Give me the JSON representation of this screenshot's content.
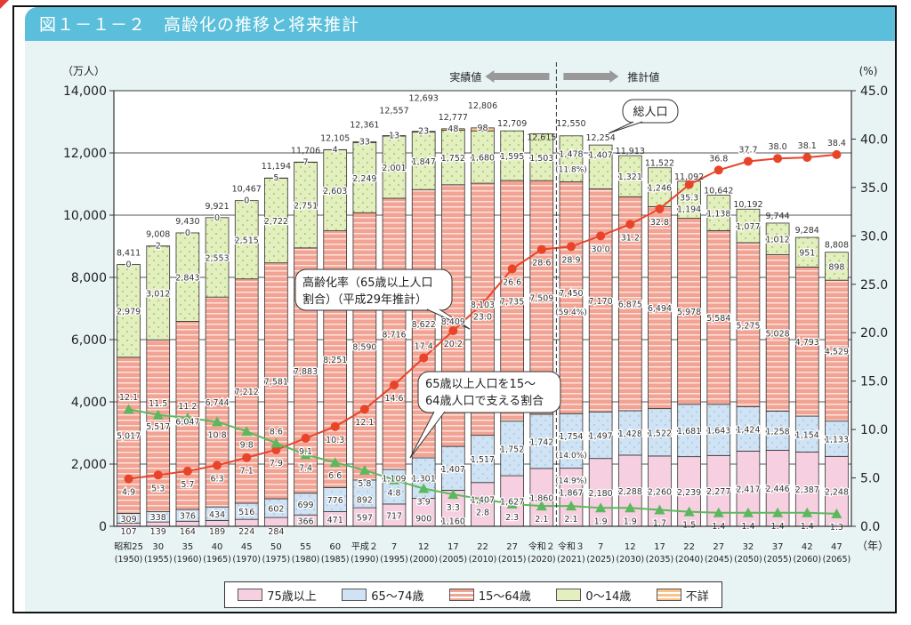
{
  "figure": {
    "title": "図１－１－２　高齢化の推移と将来推計"
  },
  "chart_data": {
    "type": "bar",
    "stacked": true,
    "title": "図１－１－２　高齢化の推移と将来推計",
    "ylabel_left": "（万人）",
    "ylabel_right": "(%)",
    "xlabel_unit": "（年）",
    "ylim_left": [
      0,
      14000
    ],
    "ylim_right": [
      0,
      45
    ],
    "yticks_left": [
      "0",
      "2,000",
      "4,000",
      "6,000",
      "8,000",
      "10,000",
      "12,000",
      "14,000"
    ],
    "yticks_right": [
      "0.0",
      "5.0",
      "10.0",
      "15.0",
      "20.0",
      "25.0",
      "30.0",
      "35.0",
      "40.0",
      "45.0"
    ],
    "grid": true,
    "legend_position": "bottom",
    "divider": {
      "left_label": "実績値",
      "right_label": "推計値"
    },
    "categories": [
      {
        "era": "昭和25",
        "year": "(1950)"
      },
      {
        "era": "30",
        "year": "(1955)"
      },
      {
        "era": "35",
        "year": "(1960)"
      },
      {
        "era": "40",
        "year": "(1965)"
      },
      {
        "era": "45",
        "year": "(1970)"
      },
      {
        "era": "50",
        "year": "(1975)"
      },
      {
        "era": "55",
        "year": "(1980)"
      },
      {
        "era": "60",
        "year": "(1985)"
      },
      {
        "era": "平成２",
        "year": "(1990)"
      },
      {
        "era": "7",
        "year": "(1995)"
      },
      {
        "era": "12",
        "year": "(2000)"
      },
      {
        "era": "17",
        "year": "(2005)"
      },
      {
        "era": "22",
        "year": "(2010)"
      },
      {
        "era": "27",
        "year": "(2015)"
      },
      {
        "era": "令和２",
        "year": "(2020)"
      },
      {
        "era": "令和３",
        "year": "(2021)"
      },
      {
        "era": "7",
        "year": "(2025)"
      },
      {
        "era": "12",
        "year": "(2030)"
      },
      {
        "era": "17",
        "year": "(2035)"
      },
      {
        "era": "22",
        "year": "(2040)"
      },
      {
        "era": "27",
        "year": "(2045)"
      },
      {
        "era": "32",
        "year": "(2050)"
      },
      {
        "era": "37",
        "year": "(2055)"
      },
      {
        "era": "42",
        "year": "(2060)"
      },
      {
        "era": "47",
        "year": "(2065)"
      }
    ],
    "series": [
      {
        "name": "75歳以上",
        "color": "#f6cfe0",
        "values": [
          107,
          139,
          164,
          189,
          224,
          284,
          366,
          471,
          597,
          717,
          900,
          1160,
          1407,
          1627,
          1860,
          1867,
          2180,
          2288,
          2260,
          2239,
          2277,
          2417,
          2446,
          2387,
          2248
        ]
      },
      {
        "name": "65～74歳",
        "color": "#cfe3f4",
        "values": [
          309,
          338,
          376,
          434,
          516,
          602,
          699,
          776,
          892,
          1109,
          1301,
          1407,
          1517,
          1752,
          1742,
          1754,
          1497,
          1428,
          1522,
          1681,
          1643,
          1424,
          1258,
          1154,
          1133
        ]
      },
      {
        "name": "15～64歳",
        "color": "#f2a393",
        "values": [
          5017,
          5517,
          6047,
          6744,
          7212,
          7581,
          7883,
          8251,
          8590,
          8716,
          8622,
          8409,
          8103,
          7735,
          7509,
          7450,
          7170,
          6875,
          6494,
          5978,
          5584,
          5275,
          5028,
          4793,
          4529
        ]
      },
      {
        "name": "0～14歳",
        "color": "#e3efbf",
        "values": [
          2979,
          3012,
          2843,
          2553,
          2515,
          2722,
          2751,
          2603,
          2249,
          2001,
          1847,
          1752,
          1680,
          1595,
          1503,
          1478,
          1407,
          1321,
          1246,
          1194,
          1138,
          1077,
          1012,
          951,
          898
        ]
      },
      {
        "name": "不詳",
        "color": "#f8c48a",
        "values": [
          0,
          2,
          0,
          0,
          0,
          5,
          7,
          4,
          33,
          13,
          23,
          48,
          98,
          null,
          null,
          null,
          null,
          null,
          null,
          null,
          null,
          null,
          null,
          null,
          null
        ]
      }
    ],
    "totals": [
      "8,411",
      "9,008",
      "9,430",
      "9,921",
      "10,467",
      "11,194",
      "11,706",
      "12,105",
      "12,361",
      "12,557",
      "12,693",
      "12,777",
      "12,806",
      "12,709",
      "12,615",
      "12,550",
      "12,254",
      "11,913",
      "11,522",
      "11,092",
      "10,642",
      "10,192",
      "9,744",
      "9,284",
      "8,808"
    ],
    "special_labels": {
      "pct_0_14_2021": "(11.8%)",
      "pct_15_64_2021": "(59.4%)",
      "pct_65_74_2021": "(14.0%)",
      "pct_75_2021": "(14.9%)"
    },
    "lines": [
      {
        "name": "高齢化率（65歳以上人口割合）（平成29年推計）",
        "axis": "right",
        "color": "#e8442a",
        "marker": "circle",
        "values": [
          4.9,
          5.3,
          5.7,
          6.3,
          7.1,
          7.9,
          9.1,
          10.3,
          12.1,
          14.6,
          17.4,
          20.2,
          23.0,
          26.6,
          28.6,
          28.9,
          30.0,
          31.2,
          32.8,
          35.3,
          36.8,
          37.7,
          38.0,
          38.1,
          38.4
        ]
      },
      {
        "name": "65歳以上人口を15～64歳人口で支える割合",
        "axis": "right",
        "color": "#5cb85c",
        "marker": "triangle",
        "values": [
          12.1,
          11.5,
          11.2,
          10.8,
          9.8,
          8.6,
          7.4,
          6.6,
          5.8,
          4.8,
          3.9,
          3.3,
          2.8,
          2.3,
          2.1,
          2.1,
          1.9,
          1.9,
          1.7,
          1.5,
          1.4,
          1.4,
          1.4,
          1.4,
          1.3
        ]
      }
    ],
    "annotations": {
      "total_callout": "総人口",
      "aging_callout_line1": "高齢化率（65歳以上人口",
      "aging_callout_line2": "割合）（平成29年推計）",
      "support_callout_line1": "65歳以上人口を15～",
      "support_callout_line2": "64歳人口で支える割合"
    }
  },
  "legend": {
    "items": [
      {
        "label": "75歳以上",
        "color": "#f6cfe0"
      },
      {
        "label": "65～74歳",
        "color": "#cfe3f4"
      },
      {
        "label": "15～64歳",
        "color": "#f2a393"
      },
      {
        "label": "0～14歳",
        "color": "#e3efbf"
      },
      {
        "label": "不詳",
        "color": "#f8c48a"
      }
    ]
  }
}
